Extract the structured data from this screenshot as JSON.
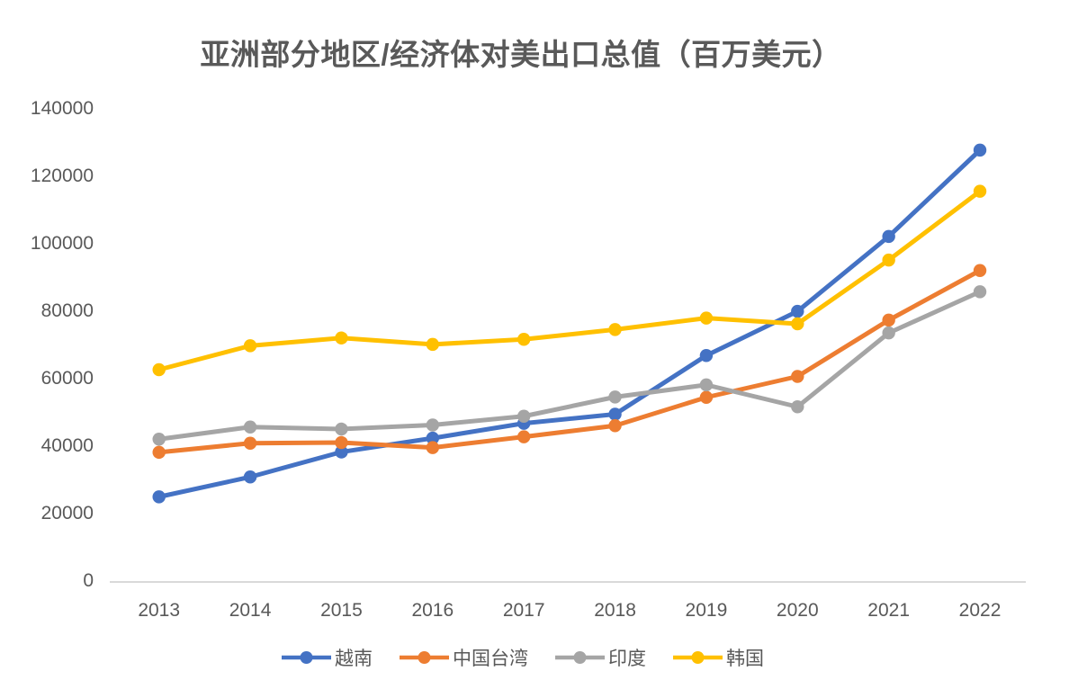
{
  "chart_data": {
    "type": "line",
    "title": "亚洲部分地区/经济体对美出口总值（百万美元）",
    "categories": [
      "2013",
      "2014",
      "2015",
      "2016",
      "2017",
      "2018",
      "2019",
      "2020",
      "2021",
      "2022"
    ],
    "series": [
      {
        "name": "越南",
        "color": "#4472C4",
        "values": [
          24700,
          30600,
          38000,
          42100,
          46500,
          49200,
          66600,
          79700,
          101900,
          127500
        ]
      },
      {
        "name": "中国台湾",
        "color": "#ED7D31",
        "values": [
          37900,
          40600,
          40800,
          39300,
          42500,
          45800,
          54200,
          60400,
          77100,
          91800
        ]
      },
      {
        "name": "印度",
        "color": "#A5A5A5",
        "values": [
          41800,
          45400,
          44800,
          46000,
          48600,
          54300,
          57900,
          51400,
          73300,
          85500
        ]
      },
      {
        "name": "韩国",
        "color": "#FFC000",
        "values": [
          62400,
          69500,
          71800,
          69900,
          71400,
          74300,
          77700,
          76000,
          94900,
          115300
        ]
      }
    ],
    "ylim": [
      0,
      140000
    ],
    "y_tick_step": 20000,
    "y_tick_labels": [
      "0",
      "20000",
      "40000",
      "60000",
      "80000",
      "100000",
      "120000",
      "140000"
    ],
    "xlabel": "",
    "ylabel": "",
    "grid": false,
    "legend_position": "bottom",
    "text_color": "#595959",
    "axis_line_color": "#D9D9D9",
    "background_color": "#FFFFFF"
  }
}
